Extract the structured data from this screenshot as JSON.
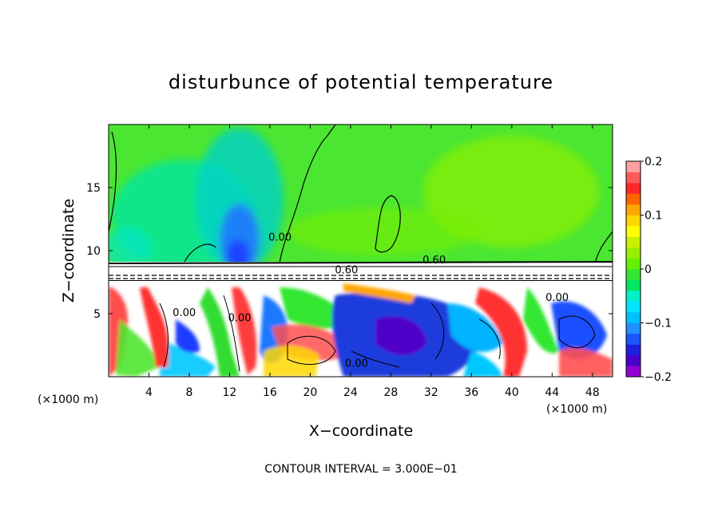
{
  "chart_data": {
    "type": "heatmap",
    "title": "disturbunce of potential temperature",
    "xlabel": "X−coordinate",
    "ylabel": "Z−coordinate",
    "x_unit_left": "(×1000 m)",
    "x_unit_right": "(×1000 m)",
    "xlim": [
      0,
      50
    ],
    "ylim": [
      0,
      20
    ],
    "x_ticks": [
      4,
      8,
      12,
      16,
      20,
      24,
      28,
      32,
      36,
      40,
      44,
      48
    ],
    "x_tick_labels": [
      "4",
      "8",
      "12",
      "16",
      "20",
      "24",
      "28",
      "32",
      "36",
      "40",
      "44",
      "48"
    ],
    "y_ticks": [
      5,
      10,
      15
    ],
    "y_tick_labels": [
      "5",
      "10",
      "15"
    ],
    "colorbar": {
      "range": [
        -0.2,
        0.2
      ],
      "levels": 20,
      "tick_values": [
        0.2,
        0.1,
        0,
        -0.1,
        -0.2
      ],
      "tick_labels": [
        "0.2",
        "0.1",
        "0",
        "−0.1",
        "−0.2"
      ],
      "colors": [
        "#9400d3",
        "#4b00c8",
        "#1f1fe0",
        "#1d55ff",
        "#1f90ff",
        "#00bfff",
        "#00e5ff",
        "#00f0c8",
        "#00e664",
        "#32e632",
        "#64f000",
        "#96f000",
        "#c8f000",
        "#ffff00",
        "#ffd700",
        "#ffa500",
        "#ff6400",
        "#ff2828",
        "#ff5a5a",
        "#ffa0a0"
      ]
    },
    "contour_interval_text": "CONTOUR INTERVAL = 3.000E−01",
    "contour_labels": [
      {
        "text": "0.00",
        "x": 17.0,
        "z": 10.8
      },
      {
        "text": "0.60",
        "x": 32.3,
        "z": 9.0
      },
      {
        "text": "0.60",
        "x": 23.6,
        "z": 8.2
      },
      {
        "text": "0.00",
        "x": 7.5,
        "z": 4.8
      },
      {
        "text": "0.00",
        "x": 13.0,
        "z": 4.4
      },
      {
        "text": "0.00",
        "x": 24.6,
        "z": 0.8
      },
      {
        "text": "0.00",
        "x": 44.5,
        "z": 6.0
      }
    ]
  }
}
